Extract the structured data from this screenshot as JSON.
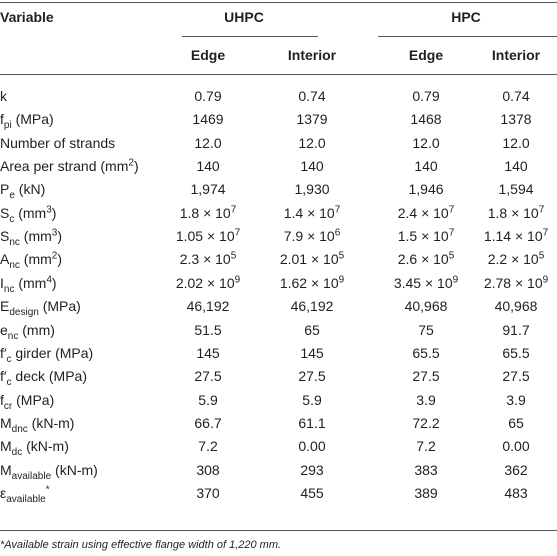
{
  "table": {
    "header": {
      "variable": "Variable",
      "groups": [
        "UHPC",
        "HPC"
      ],
      "columns": [
        "Edge",
        "Interior",
        "Edge",
        "Interior"
      ]
    },
    "rows": [
      {
        "label": [
          "k"
        ],
        "values": [
          "0.79",
          "0.74",
          "0.79",
          "0.74"
        ]
      },
      {
        "label": [
          "f",
          {
            "sub": "pi"
          },
          " (MPa)"
        ],
        "values": [
          "1469",
          "1379",
          "1468",
          "1378"
        ]
      },
      {
        "label": [
          "Number of strands"
        ],
        "values": [
          "12.0",
          "12.0",
          "12.0",
          "12.0"
        ]
      },
      {
        "label": [
          "Area per strand (mm",
          {
            "sup": "2"
          },
          ")"
        ],
        "values": [
          "140",
          "140",
          "140",
          "140"
        ]
      },
      {
        "label": [
          "P",
          {
            "sub": "e"
          },
          " (kN)"
        ],
        "values": [
          "1,974",
          "1,930",
          "1,946",
          "1,594"
        ]
      },
      {
        "label": [
          "S",
          {
            "sub": "c"
          },
          " (mm",
          {
            "sup": "3"
          },
          ")"
        ],
        "values": [
          [
            "1.8 × 10",
            {
              "sup": "7"
            }
          ],
          [
            "1.4 × 10",
            {
              "sup": "7"
            }
          ],
          [
            "2.4 × 10",
            {
              "sup": "7"
            }
          ],
          [
            "1.8 × 10",
            {
              "sup": "7"
            }
          ]
        ]
      },
      {
        "label": [
          "S",
          {
            "sub": "nc"
          },
          " (mm",
          {
            "sup": "3"
          },
          ")"
        ],
        "values": [
          [
            "1.05 × 10",
            {
              "sup": "7"
            }
          ],
          [
            "7.9 × 10",
            {
              "sup": "6"
            }
          ],
          [
            "1.5 × 10",
            {
              "sup": "7"
            }
          ],
          [
            "1.14 × 10",
            {
              "sup": "7"
            }
          ]
        ]
      },
      {
        "label": [
          "A",
          {
            "sub": "nc"
          },
          " (mm",
          {
            "sup": "2"
          },
          ")"
        ],
        "values": [
          [
            "2.3 × 10",
            {
              "sup": "5"
            }
          ],
          [
            "2.01 × 10",
            {
              "sup": "5"
            }
          ],
          [
            "2.6 × 10",
            {
              "sup": "5"
            }
          ],
          [
            "2.2 × 10",
            {
              "sup": "5"
            }
          ]
        ]
      },
      {
        "label": [
          "I",
          {
            "sub": "nc"
          },
          " (mm",
          {
            "sup": "4"
          },
          ")"
        ],
        "values": [
          [
            "2.02 × 10",
            {
              "sup": "9"
            }
          ],
          [
            "1.62 × 10",
            {
              "sup": "9"
            }
          ],
          [
            "3.45 × 10",
            {
              "sup": "9"
            }
          ],
          [
            "2.78 × 10",
            {
              "sup": "9"
            }
          ]
        ]
      },
      {
        "label": [
          "E",
          {
            "sub": "design"
          },
          " (MPa)"
        ],
        "values": [
          "46,192",
          "46,192",
          "40,968",
          "40,968"
        ]
      },
      {
        "label": [
          "e",
          {
            "sub": "nc"
          },
          " (mm)"
        ],
        "values": [
          "51.5",
          "65",
          "75",
          "91.7"
        ]
      },
      {
        "label": [
          "f′",
          {
            "sub": "c"
          },
          " girder (MPa)"
        ],
        "values": [
          "145",
          "145",
          "65.5",
          "65.5"
        ]
      },
      {
        "label": [
          "f′",
          {
            "sub": "c"
          },
          " deck (MPa)"
        ],
        "values": [
          "27.5",
          "27.5",
          "27.5",
          "27.5"
        ]
      },
      {
        "label": [
          "f",
          {
            "sub": "cr"
          },
          " (MPa)"
        ],
        "values": [
          "5.9",
          "5.9",
          "3.9",
          "3.9"
        ]
      },
      {
        "label": [
          "M",
          {
            "sub": "dnc"
          },
          " (kN-m)"
        ],
        "values": [
          "66.7",
          "61.1",
          "72.2",
          "65"
        ]
      },
      {
        "label": [
          "M",
          {
            "sub": "dc"
          },
          " (kN-m)"
        ],
        "values": [
          "7.2",
          "0.00",
          "7.2",
          "0.00"
        ]
      },
      {
        "label": [
          "M",
          {
            "sub": "available"
          },
          " (kN-m)"
        ],
        "values": [
          "308",
          "293",
          "383",
          "362"
        ]
      },
      {
        "label": [
          "ε",
          {
            "sub": "available"
          },
          {
            "sup": "*"
          }
        ],
        "values": [
          "370",
          "455",
          "389",
          "483"
        ]
      }
    ],
    "footnote": "*Available strain using effective flange width of 1,220 mm."
  }
}
